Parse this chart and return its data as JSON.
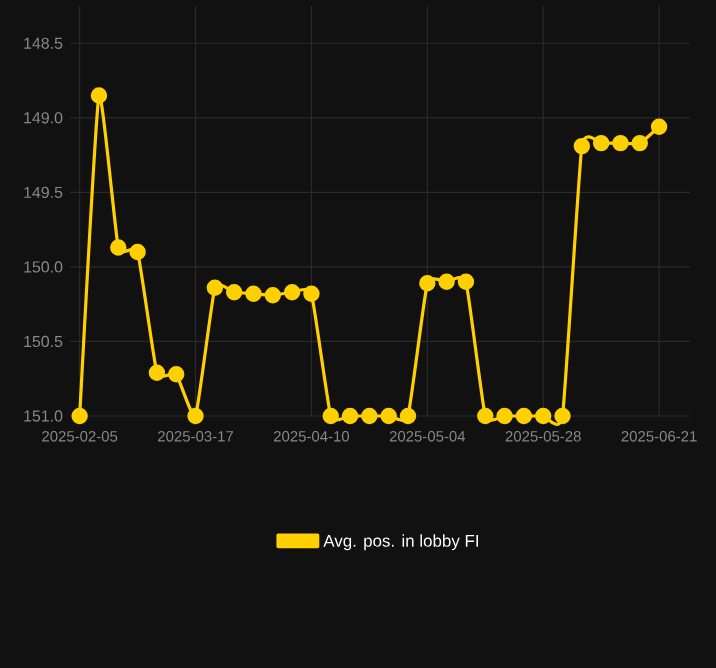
{
  "chart_data": {
    "type": "line",
    "categories": [
      "2025-02-05",
      null,
      null,
      null,
      null,
      null,
      "2025-03-17",
      null,
      null,
      null,
      null,
      null,
      "2025-04-10",
      null,
      null,
      null,
      null,
      null,
      "2025-05-04",
      null,
      null,
      null,
      null,
      null,
      "2025-05-28",
      null,
      null,
      null,
      null,
      null,
      "2025-06-21"
    ],
    "series": [
      {
        "name": "Avg. pos. in lobby FI",
        "color": "#ffd000",
        "values": [
          151.0,
          148.85,
          149.87,
          149.9,
          150.71,
          150.72,
          151.0,
          150.14,
          150.17,
          150.18,
          150.19,
          150.17,
          150.18,
          151.0,
          151.0,
          151.0,
          151.0,
          151.0,
          150.11,
          150.1,
          150.1,
          151.0,
          151.0,
          151.0,
          151.0,
          151.0,
          149.19,
          149.17,
          149.17,
          149.17,
          149.06
        ]
      }
    ],
    "ylim": [
      151.0,
      148.5
    ],
    "yticks": [
      {
        "value": 148.5,
        "label": "148.5"
      },
      {
        "value": 149.0,
        "label": "149.0"
      },
      {
        "value": 149.5,
        "label": "149.5"
      },
      {
        "value": 150.0,
        "label": "150.0"
      },
      {
        "value": 150.5,
        "label": "150.5"
      },
      {
        "value": 151.0,
        "label": "151.0"
      }
    ],
    "grid": true,
    "legend": "bottom",
    "marker": "circle",
    "line_style": "solid"
  }
}
